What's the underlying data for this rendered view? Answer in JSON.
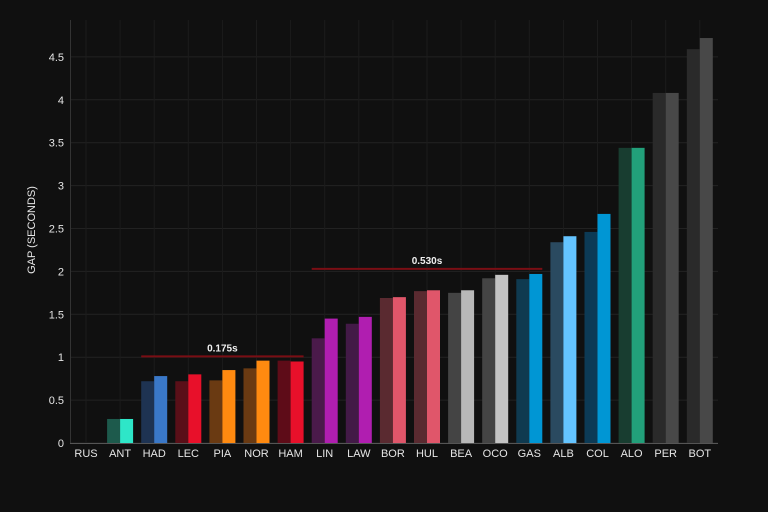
{
  "chart_data": {
    "type": "bar",
    "title": "",
    "xlabel": "",
    "ylabel": "GAP (SECONDS)",
    "ylim": [
      0,
      4.8
    ],
    "yticks": [
      "0",
      "0.5",
      "1",
      "1.5",
      "2",
      "2.5",
      "3",
      "3.5",
      "4",
      "4.5"
    ],
    "grid": true,
    "background": "#101010",
    "categories": [
      "RUS",
      "ANT",
      "HAD",
      "LEC",
      "PIA",
      "NOR",
      "HAM",
      "LIN",
      "LAW",
      "BOR",
      "HUL",
      "BEA",
      "OCO",
      "GAS",
      "ALB",
      "COL",
      "ALO",
      "PER",
      "BOT"
    ],
    "series": [
      {
        "values": [
          0,
          0.28,
          0.72,
          0.72,
          0.73,
          0.87,
          0.96,
          1.22,
          1.39,
          1.69,
          1.77,
          1.75,
          1.92,
          1.91,
          2.34,
          2.46,
          3.44,
          4.08,
          4.59
        ],
        "colors": [
          "#222222",
          "#1d5a4c",
          "#1e3352",
          "#5a0f18",
          "#6a3a12",
          "#6a3a12",
          "#5e0c18",
          "#4a1a4a",
          "#431a47",
          "#5a2a30",
          "#5a2a30",
          "#444444",
          "#444444",
          "#0f3a50",
          "#2a4a60",
          "#0c3a55",
          "#183d30",
          "#2a2a2a",
          "#2a2a2a"
        ]
      },
      {
        "values": [
          0,
          0.28,
          0.78,
          0.8,
          0.85,
          0.96,
          0.95,
          1.45,
          1.47,
          1.7,
          1.78,
          1.78,
          1.96,
          1.97,
          2.41,
          2.67,
          3.44,
          4.08,
          4.72
        ],
        "colors": [
          "#333333",
          "#2ee6c8",
          "#3a78c8",
          "#e8102a",
          "#ff8a10",
          "#ff8a10",
          "#e8102a",
          "#b01eb0",
          "#b01eb0",
          "#e0566a",
          "#e0566a",
          "#b8b8b8",
          "#c4c4c4",
          "#0096d4",
          "#64c4ff",
          "#0096d4",
          "#22a07a",
          "#484848",
          "#484848"
        ]
      }
    ],
    "annotations": [
      {
        "label": "0.175s",
        "from": "HAD",
        "to": "HAM",
        "y": 1.01,
        "color": "#7a0e14"
      },
      {
        "label": "0.530s",
        "from": "LIN",
        "to": "GAS",
        "y": 2.03,
        "color": "#7a0e14"
      }
    ]
  }
}
